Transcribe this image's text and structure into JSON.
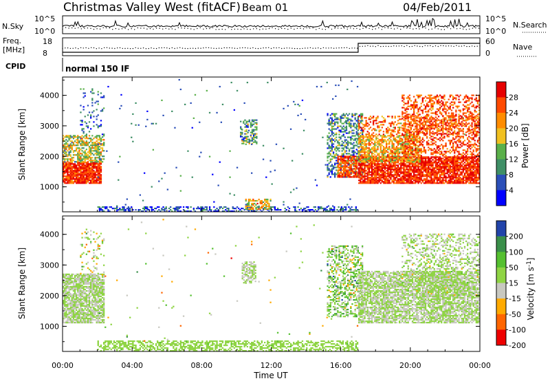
{
  "header": {
    "station": "Christmas Valley West (fitACF)",
    "beam": "Beam 01",
    "date": "04/Feb/2011"
  },
  "noise_panel": {
    "left_label": "N.Sky",
    "right_label": "N.Search",
    "left_ticks": [
      "10^5",
      "10^0"
    ],
    "right_ticks": [
      "10^5",
      "10^0"
    ]
  },
  "freq_panel": {
    "left_label_1": "Freq.",
    "left_label_2": "[MHz]",
    "right_label": "Nave",
    "left_ticks": [
      "18",
      "8"
    ],
    "right_ticks": [
      "60",
      "0"
    ]
  },
  "cpid": {
    "label": "CPID",
    "program": "normal 150 IF"
  },
  "colors": {
    "power_scale": [
      "#0000ff",
      "#2b4fb8",
      "#3f8f66",
      "#5ab04a",
      "#f0c020",
      "#ff8c00",
      "#ff4a00",
      "#e60000"
    ],
    "velocity_scale": [
      "#2244aa",
      "#3a8f4a",
      "#55c030",
      "#8fd444",
      "#c8c8c0",
      "#ffaa00",
      "#ff6600",
      "#ee0000"
    ]
  },
  "chart_data": [
    {
      "type": "heatmap",
      "name": "power",
      "xlabel": "",
      "ylabel": "Slant Range [km]",
      "x_ticks": [
        "00:00",
        "04:00",
        "08:00",
        "12:00",
        "16:00",
        "20:00",
        "00:00"
      ],
      "y_ticks": [
        "1000",
        "2000",
        "3000",
        "4000"
      ],
      "ylim": [
        180,
        4600
      ],
      "colorbar_label": "Power [dB]",
      "colorbar_ticks": [
        "28",
        "24",
        "20",
        "16",
        "12",
        "8",
        "4"
      ],
      "crange": [
        0,
        32
      ],
      "blobs": [
        {
          "h0": 0.0,
          "h1": 2.2,
          "r0": 1100,
          "r1": 1800,
          "val": 28,
          "spread": 6,
          "density": 0.9
        },
        {
          "h0": 0.0,
          "h1": 2.4,
          "r0": 1800,
          "r1": 2700,
          "val": 16,
          "spread": 8,
          "density": 0.6
        },
        {
          "h0": 1.0,
          "h1": 2.4,
          "r0": 2700,
          "r1": 4200,
          "val": 8,
          "spread": 6,
          "density": 0.15
        },
        {
          "h0": 10.2,
          "h1": 11.2,
          "r0": 2400,
          "r1": 3200,
          "val": 12,
          "spread": 8,
          "density": 0.5
        },
        {
          "h0": 15.2,
          "h1": 17.2,
          "r0": 1300,
          "r1": 3400,
          "val": 10,
          "spread": 8,
          "density": 0.45
        },
        {
          "h0": 15.8,
          "h1": 16.9,
          "r0": 1300,
          "r1": 2000,
          "val": 26,
          "spread": 5,
          "density": 0.8
        },
        {
          "h0": 17.0,
          "h1": 24.0,
          "r0": 1100,
          "r1": 2000,
          "val": 28,
          "spread": 5,
          "density": 0.85
        },
        {
          "h0": 17.0,
          "h1": 20.5,
          "r0": 1800,
          "r1": 2700,
          "val": 20,
          "spread": 7,
          "density": 0.7
        },
        {
          "h0": 17.0,
          "h1": 24.0,
          "r0": 2700,
          "r1": 3300,
          "val": 24,
          "spread": 8,
          "density": 0.35
        },
        {
          "h0": 19.5,
          "h1": 24.0,
          "r0": 2000,
          "r1": 4000,
          "val": 26,
          "spread": 5,
          "density": 0.4
        },
        {
          "h0": 2.0,
          "h1": 17.0,
          "r0": 180,
          "r1": 350,
          "val": 6,
          "spread": 6,
          "density": 0.45
        },
        {
          "h0": 10.5,
          "h1": 12.0,
          "r0": 250,
          "r1": 600,
          "val": 18,
          "spread": 8,
          "density": 0.6
        },
        {
          "h0": 2.0,
          "h1": 17.0,
          "r0": 350,
          "r1": 4500,
          "val": 8,
          "spread": 6,
          "density": 0.008
        }
      ]
    },
    {
      "type": "heatmap",
      "name": "velocity",
      "xlabel": "Time UT",
      "ylabel": "Slant Range [km]",
      "x_ticks": [
        "00:00",
        "04:00",
        "08:00",
        "12:00",
        "16:00",
        "20:00",
        "00:00"
      ],
      "y_ticks": [
        "1000",
        "2000",
        "3000",
        "4000"
      ],
      "ylim": [
        180,
        4600
      ],
      "colorbar_label": "Velocity [m s^-1]",
      "colorbar_ticks": [
        "200",
        "100",
        "50",
        "15",
        "-15",
        "-50",
        "-100",
        "-200"
      ],
      "crange": [
        -250,
        250
      ],
      "blobs": [
        {
          "h0": 0.0,
          "h1": 2.4,
          "r0": 1100,
          "r1": 2700,
          "val": 0,
          "spread": 10,
          "density": 0.8
        },
        {
          "h0": 1.0,
          "h1": 2.4,
          "r0": 2700,
          "r1": 4200,
          "val": 0,
          "spread": 120,
          "density": 0.12
        },
        {
          "h0": 10.3,
          "h1": 11.1,
          "r0": 2400,
          "r1": 3100,
          "val": 0,
          "spread": 20,
          "density": 0.6
        },
        {
          "h0": 15.2,
          "h1": 17.2,
          "r0": 1300,
          "r1": 3600,
          "val": 40,
          "spread": 120,
          "density": 0.45
        },
        {
          "h0": 17.0,
          "h1": 24.0,
          "r0": 1100,
          "r1": 2800,
          "val": 0,
          "spread": 10,
          "density": 0.75
        },
        {
          "h0": 19.5,
          "h1": 24.0,
          "r0": 2000,
          "r1": 4000,
          "val": 0,
          "spread": 60,
          "density": 0.35
        },
        {
          "h0": 20.5,
          "h1": 23.0,
          "r0": 1500,
          "r1": 3200,
          "val": 45,
          "spread": 10,
          "density": 0.15
        },
        {
          "h0": 2.0,
          "h1": 17.0,
          "r0": 180,
          "r1": 500,
          "val": 40,
          "spread": 20,
          "density": 0.5
        },
        {
          "h0": 2.0,
          "h1": 17.0,
          "r0": 500,
          "r1": 4500,
          "val": 0,
          "spread": 150,
          "density": 0.006
        }
      ]
    }
  ]
}
